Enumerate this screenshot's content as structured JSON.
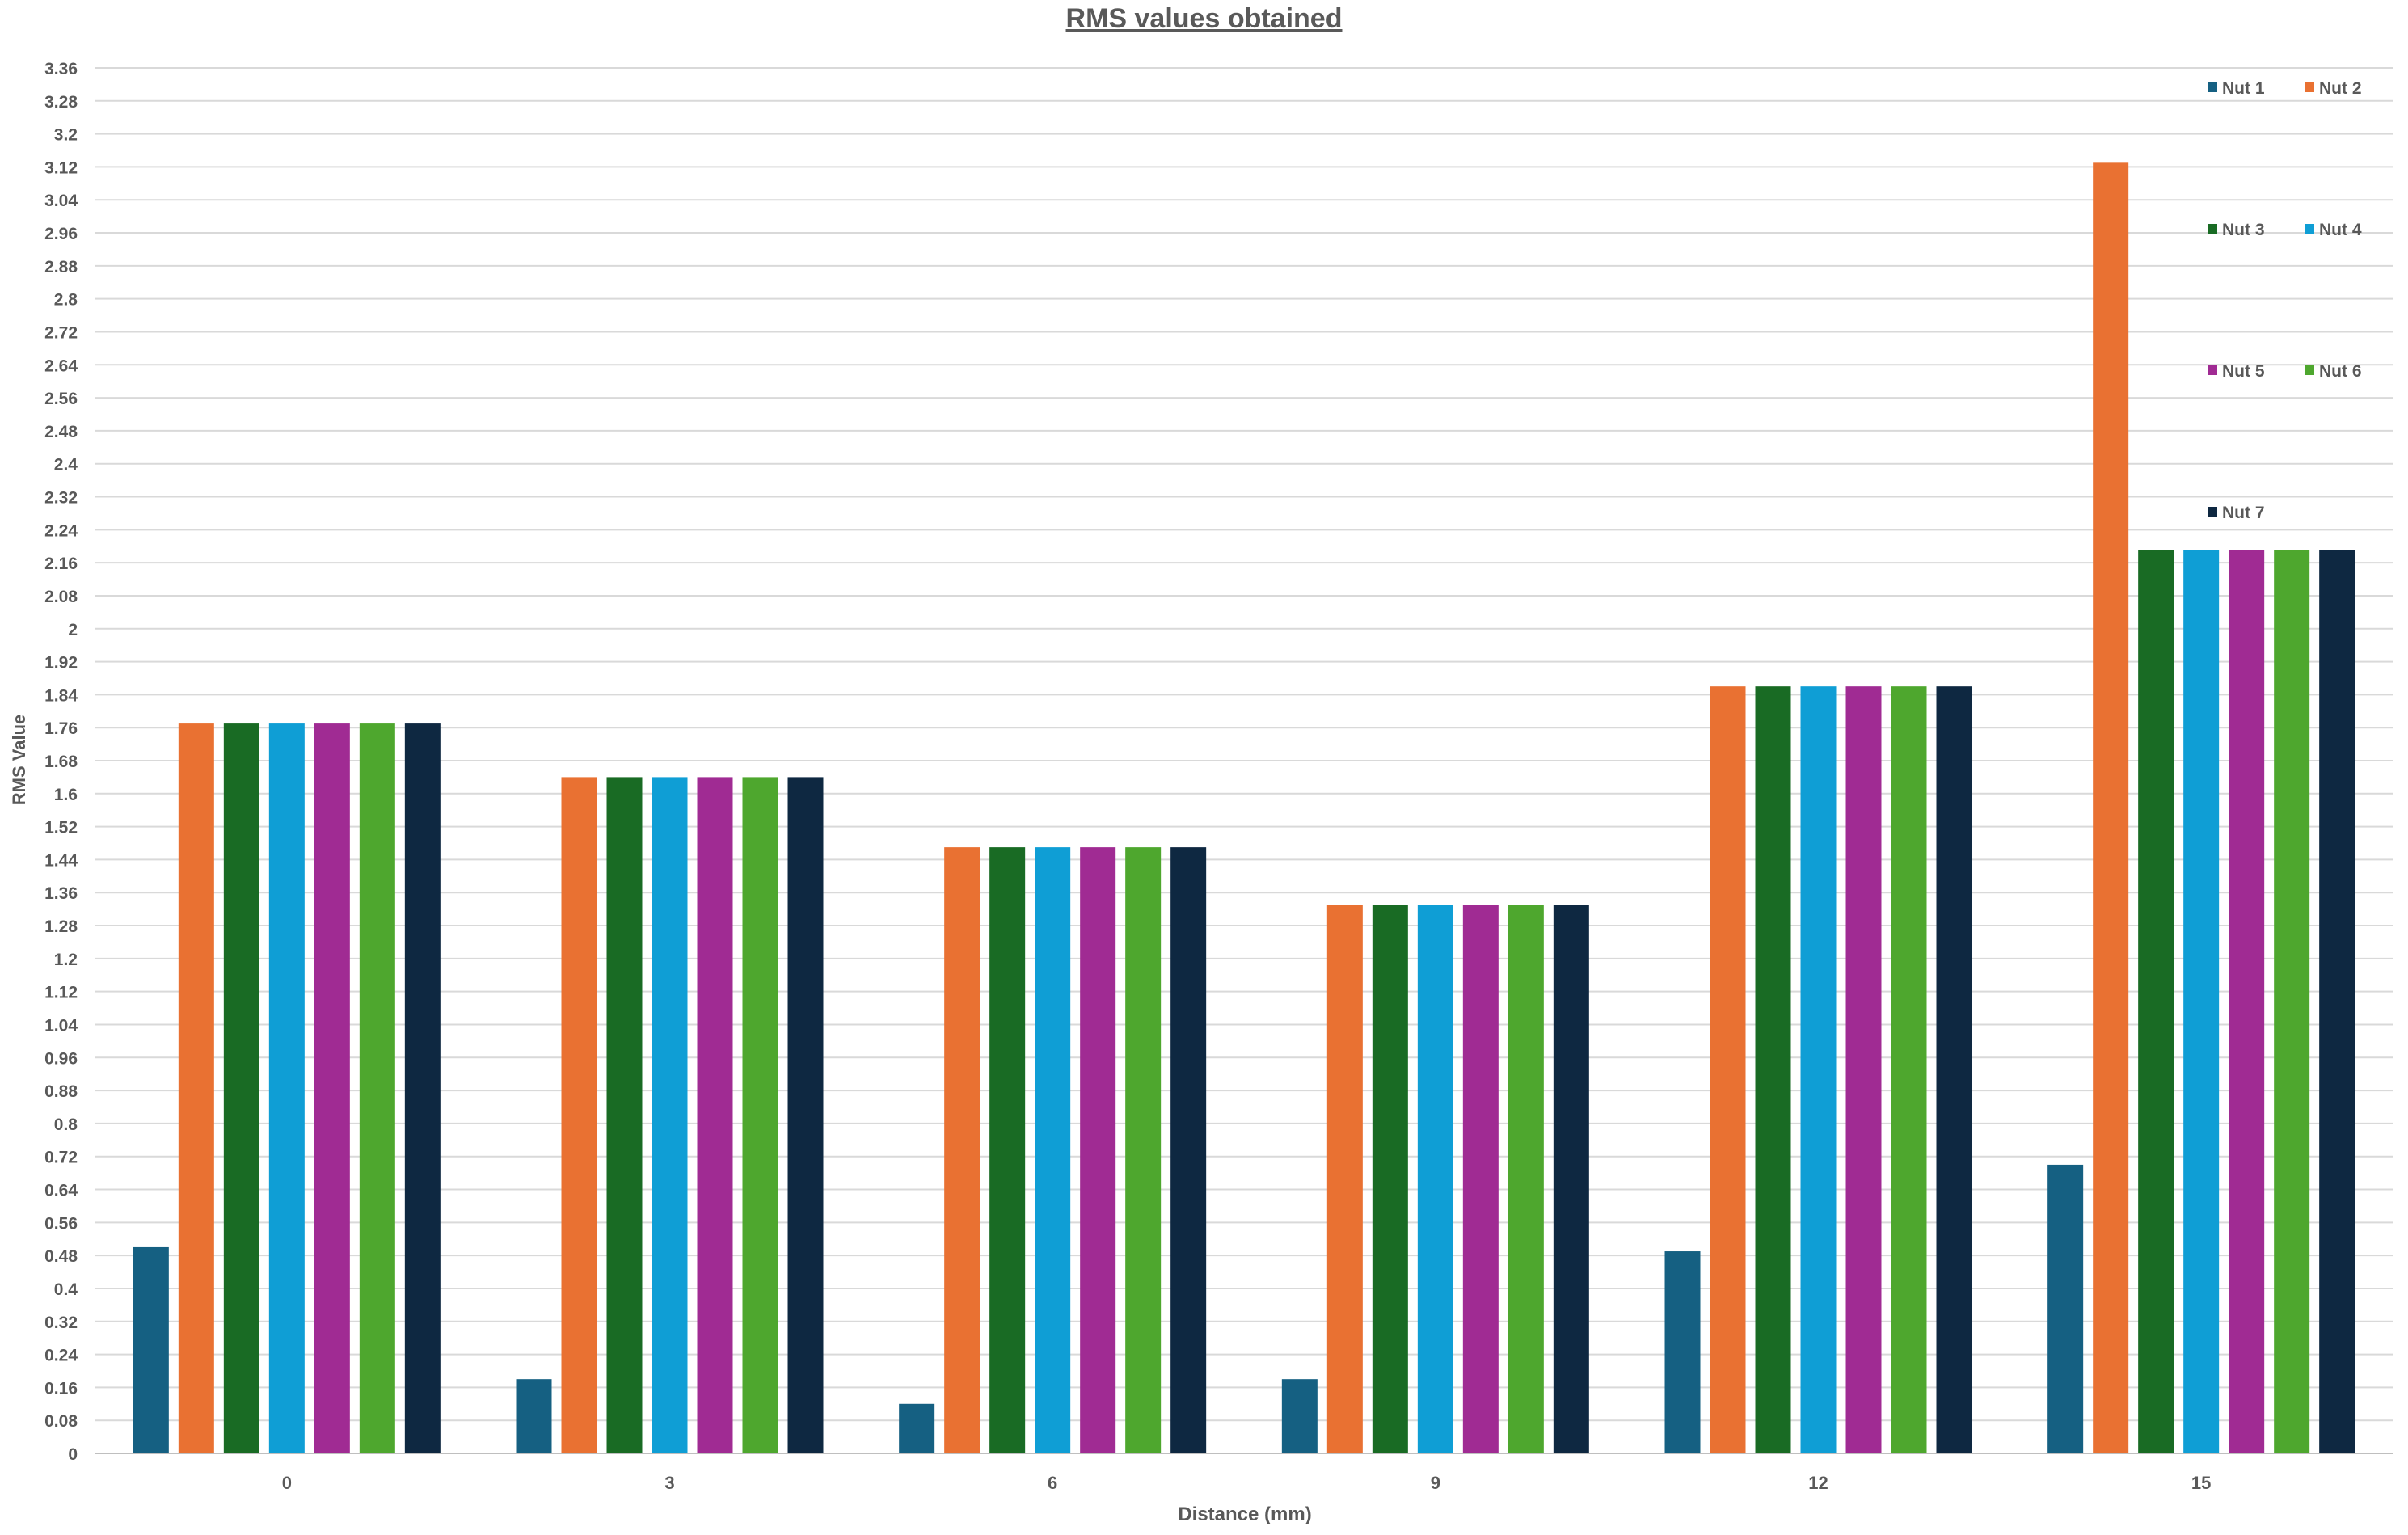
{
  "chart_data": {
    "type": "bar",
    "title": "RMS values obtained",
    "xlabel": "Distance (mm)",
    "ylabel": "RMS Value",
    "categories": [
      "0",
      "3",
      "6",
      "9",
      "12",
      "15"
    ],
    "ylim": [
      0,
      3.36
    ],
    "ytick_step": 0.08,
    "ytick_labels": [
      "0",
      "0.08",
      "0.16",
      "0.24",
      "0.32",
      "0.4",
      "0.48",
      "0.56",
      "0.64",
      "0.72",
      "0.8",
      "0.88",
      "0.96",
      "1.04",
      "1.12",
      "1.2",
      "1.28",
      "1.36",
      "1.44",
      "1.52",
      "1.6",
      "1.68",
      "1.76",
      "1.84",
      "1.92",
      "2",
      "2.08",
      "2.16",
      "2.24",
      "2.32",
      "2.4",
      "2.48",
      "2.56",
      "2.64",
      "2.72",
      "2.8",
      "2.88",
      "2.96",
      "3.04",
      "3.12",
      "3.2",
      "3.28",
      "3.36"
    ],
    "grid": true,
    "legend_position": "top-right",
    "series": [
      {
        "name": "Nut 1",
        "color": "#156082",
        "values": [
          0.5,
          0.18,
          0.12,
          0.18,
          0.49,
          0.7
        ]
      },
      {
        "name": "Nut 2",
        "color": "#E97132",
        "values": [
          1.77,
          1.64,
          1.47,
          1.33,
          1.86,
          3.13
        ]
      },
      {
        "name": "Nut 3",
        "color": "#196B24",
        "values": [
          1.77,
          1.64,
          1.47,
          1.33,
          1.86,
          2.19
        ]
      },
      {
        "name": "Nut 4",
        "color": "#0F9ED5",
        "values": [
          1.77,
          1.64,
          1.47,
          1.33,
          1.86,
          2.19
        ]
      },
      {
        "name": "Nut 5",
        "color": "#A02B93",
        "values": [
          1.77,
          1.64,
          1.47,
          1.33,
          1.86,
          2.19
        ]
      },
      {
        "name": "Nut 6",
        "color": "#4EA72E",
        "values": [
          1.77,
          1.64,
          1.47,
          1.33,
          1.86,
          2.19
        ]
      },
      {
        "name": "Nut 7",
        "color": "#0E2841",
        "values": [
          1.77,
          1.64,
          1.47,
          1.33,
          1.86,
          2.19
        ]
      }
    ]
  }
}
